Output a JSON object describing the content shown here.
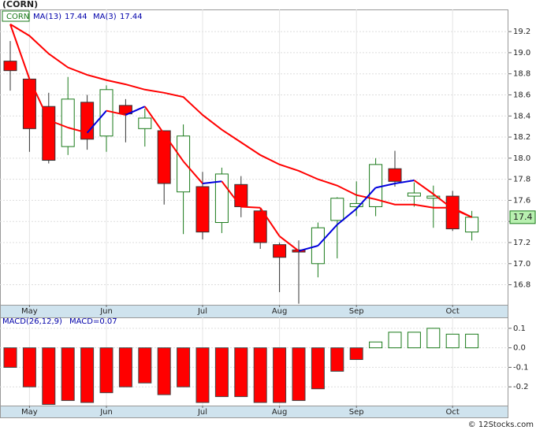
{
  "chart_data": [
    {
      "type": "candlestick",
      "title": "(CORN)",
      "categories": [
        null,
        "May",
        null,
        null,
        null,
        "Jun",
        null,
        null,
        null,
        null,
        "Jul",
        null,
        null,
        null,
        "Aug",
        null,
        null,
        null,
        "Sep",
        null,
        null,
        null,
        null,
        "Oct",
        null
      ],
      "series": [
        {
          "name": "CORN",
          "type": "candlestick",
          "up_color": "#1a7a1a",
          "down_color": "#ff0000",
          "open": [
            18.92,
            18.75,
            18.49,
            18.11,
            18.53,
            18.21,
            18.5,
            18.28,
            18.26,
            17.68,
            17.73,
            17.39,
            17.75,
            17.5,
            17.18,
            17.13,
            17.0,
            17.41,
            17.54,
            17.54,
            17.9,
            17.64,
            17.62,
            17.64,
            17.3
          ],
          "high": [
            19.11,
            18.75,
            18.62,
            18.77,
            18.6,
            18.69,
            18.56,
            18.47,
            18.26,
            18.32,
            17.87,
            17.91,
            17.83,
            17.52,
            17.2,
            17.22,
            17.39,
            17.63,
            17.78,
            18.0,
            18.07,
            17.77,
            17.74,
            17.69,
            17.5
          ],
          "low": [
            18.64,
            18.06,
            17.95,
            18.03,
            18.08,
            18.06,
            18.15,
            18.11,
            17.56,
            17.28,
            17.23,
            17.29,
            17.44,
            17.14,
            16.73,
            16.62,
            16.87,
            17.05,
            17.45,
            17.45,
            17.73,
            17.54,
            17.34,
            17.31,
            17.22
          ],
          "close": [
            18.83,
            18.28,
            17.98,
            18.56,
            18.18,
            18.65,
            18.42,
            18.38,
            17.76,
            18.21,
            17.3,
            17.85,
            17.54,
            17.2,
            17.06,
            17.11,
            17.34,
            17.62,
            17.57,
            17.94,
            17.78,
            17.67,
            17.64,
            17.33,
            17.44
          ]
        },
        {
          "name": "MA(13)",
          "type": "line",
          "color": "#ff0000",
          "legend_value": 17.44,
          "values": [
            19.27,
            19.16,
            18.99,
            18.86,
            18.79,
            18.74,
            18.7,
            18.65,
            18.62,
            18.58,
            18.41,
            18.27,
            18.15,
            18.03,
            17.94,
            17.88,
            17.8,
            17.74,
            17.65,
            17.61,
            17.56,
            17.56,
            17.53,
            17.53,
            17.44
          ]
        },
        {
          "name": "MA(3)",
          "type": "line",
          "up_color": "#0000dd",
          "down_color": "#ff0000",
          "legend_value": 17.44,
          "values": [
            19.27,
            18.75,
            18.36,
            18.29,
            18.24,
            18.45,
            18.41,
            18.49,
            18.23,
            17.97,
            17.76,
            17.78,
            17.54,
            17.53,
            17.26,
            17.12,
            17.17,
            17.37,
            17.52,
            17.72,
            17.76,
            17.79,
            17.66,
            17.52,
            17.44
          ]
        }
      ],
      "ylim": [
        16.61,
        19.41
      ],
      "yticks": [
        16.8,
        {
          "value": 17,
          "label": "17.0"
        },
        17.2,
        17.4,
        17.6,
        17.8,
        {
          "value": 18,
          "label": "18.0"
        },
        18.2,
        18.4,
        18.6,
        18.8,
        {
          "value": 19,
          "label": "19.0"
        },
        19.2
      ],
      "last_price": {
        "value": 17.44,
        "label": "17.4"
      },
      "grid": true
    },
    {
      "type": "bar",
      "title": "MACD(26,12,9)",
      "subtitle": "MACD=0.07",
      "categories": [
        null,
        "May",
        null,
        null,
        null,
        "Jun",
        null,
        null,
        null,
        null,
        "Jul",
        null,
        null,
        null,
        "Aug",
        null,
        null,
        null,
        "Sep",
        null,
        null,
        null,
        null,
        "Oct",
        null
      ],
      "values": [
        -0.1,
        -0.2,
        -0.29,
        -0.27,
        -0.28,
        -0.23,
        -0.2,
        -0.18,
        -0.24,
        -0.2,
        -0.28,
        -0.25,
        -0.25,
        -0.28,
        -0.28,
        -0.27,
        -0.21,
        -0.12,
        -0.06,
        0.03,
        0.08,
        0.08,
        0.1,
        0.07,
        0.07
      ],
      "pos_color": "#1a7a1a",
      "neg_color": "#ff0000",
      "ylim": [
        -0.296,
        0.156
      ],
      "yticks": [
        -0.2,
        -0.1,
        {
          "value": 0,
          "label": "0.0"
        },
        0.1
      ],
      "grid": true
    },
    {
      "type": "footer",
      "text": "© 12Stocks.com"
    }
  ]
}
